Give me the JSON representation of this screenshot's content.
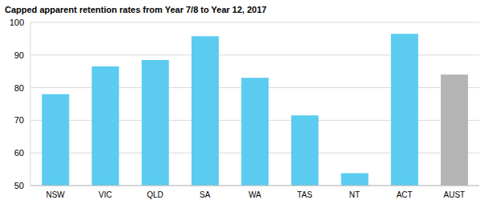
{
  "chart_data": {
    "type": "bar",
    "title": "Capped apparent retention rates from Year 7/8 to Year 12, 2017",
    "categories": [
      "NSW",
      "VIC",
      "QLD",
      "SA",
      "WA",
      "TAS",
      "NT",
      "ACT",
      "AUST"
    ],
    "values": [
      78,
      86.5,
      88.5,
      95.8,
      83,
      71.5,
      53.8,
      96.5,
      84
    ],
    "colors": [
      "#5bcbf0",
      "#5bcbf0",
      "#5bcbf0",
      "#5bcbf0",
      "#5bcbf0",
      "#5bcbf0",
      "#5bcbf0",
      "#5bcbf0",
      "#b4b4b4"
    ],
    "ylim": [
      50,
      100
    ],
    "yticks": [
      50,
      60,
      70,
      80,
      90,
      100
    ],
    "grid": true
  }
}
